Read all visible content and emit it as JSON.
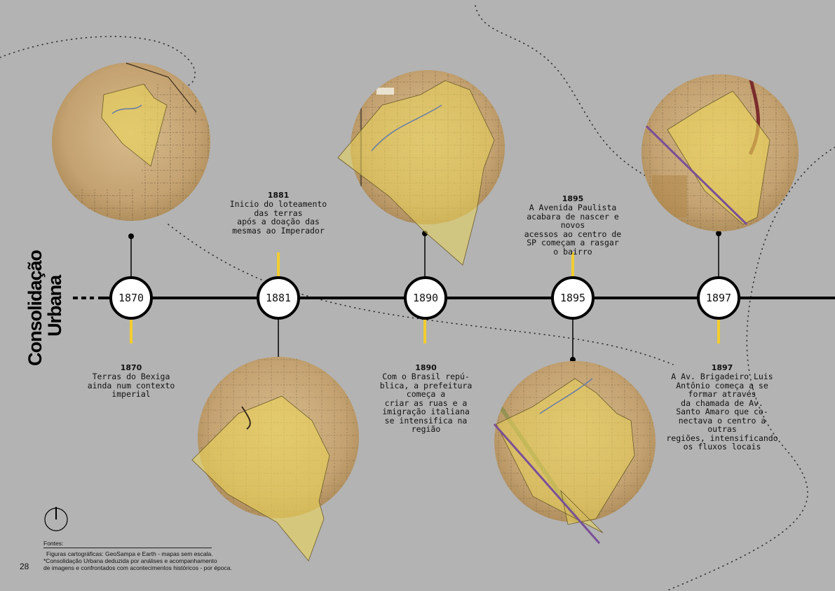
{
  "title": {
    "line1": "Consolidação",
    "line2": "Urbana"
  },
  "timeline": [
    {
      "year": "1870",
      "event_year": "1870",
      "event_text": "Terras do Bexiga\nainda num contexto\nimperial"
    },
    {
      "year": "1881",
      "event_year": "1881",
      "event_text": "Inicio do loteamento\ndas terras\napós a doação das\nmesmas ao Imperador"
    },
    {
      "year": "1890",
      "event_year": "1890",
      "event_text": "Com o Brasil repú-\nblica, a prefeitura\ncomeça a\ncriar as ruas e a\nimigração italiana\nse intensifica na\nregião"
    },
    {
      "year": "1895",
      "event_year": "1895",
      "event_text": "A Avenida Paulista\nacabara de nascer e\nnovos\nacessos ao centro de\nSP começam a rasgar\no bairro"
    },
    {
      "year": "1897",
      "event_year": "1897",
      "event_text": "A Av. Brigadeiro Luis\nAntônio começa a se\nformar através\nda chamada de Av.\nSanto Amaro que co-\nnectava o centro a\noutras\nregiões, intensificando\nos fluxos locais"
    }
  ],
  "footer": {
    "fontes_label": "Fontes:",
    "fontes_line1": "Figuras cartográficas: GeoSampa e Earth - mapas sem escala.",
    "fontes_line2": "*Consolidação Urbana deduzida por análises e acompanhamento",
    "fontes_line3": "de imagens e confrontados com acontecimentos históricos - por época.",
    "page_number": "28"
  },
  "icons": {
    "north": "north-arrow-icon"
  },
  "colors": {
    "background": "#b3b3b3",
    "accent": "#f2cd2e",
    "line": "#000000",
    "map_paper": "#c9a97a",
    "overlay": "#ead35a"
  }
}
